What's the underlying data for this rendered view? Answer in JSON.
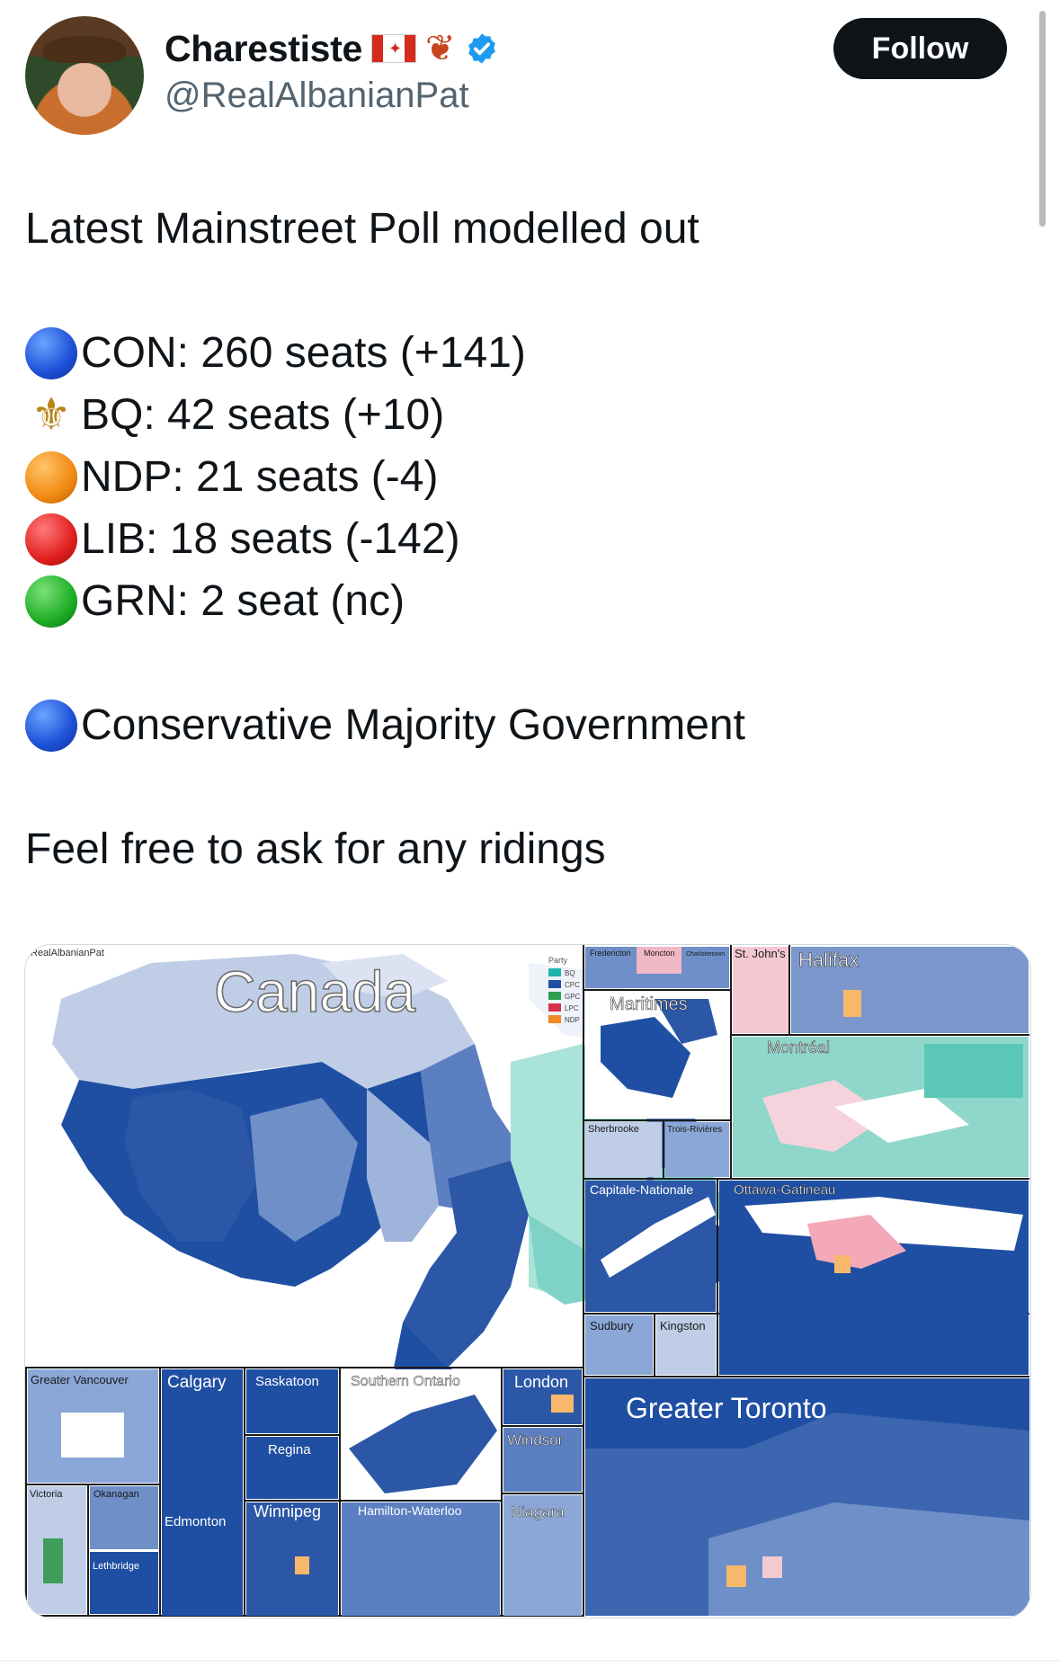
{
  "user": {
    "display_name": "Charestiste",
    "handle": "@RealAlbanianPat",
    "follow_label": "Follow"
  },
  "tweet": {
    "headline": "Latest Mainstreet Poll modelled out",
    "results": [
      {
        "icon": "blue-circle",
        "text": "CON: 260 seats (+141)"
      },
      {
        "icon": "fleur-de-lis",
        "text": "BQ: 42 seats (+10)"
      },
      {
        "icon": "orange-circle",
        "text": "NDP: 21 seats (-4)"
      },
      {
        "icon": "red-circle",
        "text": "LIB: 18 seats (-142)"
      },
      {
        "icon": "green-circle",
        "text": "GRN: 2 seat (nc)"
      }
    ],
    "outcome": "Conservative Majority Government",
    "closing": "Feel free to ask for any ridings"
  },
  "map": {
    "watermark": "RealAlbanianPat",
    "title": "Canada",
    "legend_title": "Party",
    "legend": [
      {
        "label": "BQ",
        "color": "#1fb5a8"
      },
      {
        "label": "CPC",
        "color": "#1f4fa3"
      },
      {
        "label": "GPC",
        "color": "#2e9e4f"
      },
      {
        "label": "LPC",
        "color": "#d6304a"
      },
      {
        "label": "NDP",
        "color": "#f08a24"
      }
    ],
    "insets": {
      "fredericton": "Fredericton",
      "moncton": "Moncton",
      "charlottetown": "Charlottetown",
      "st_johns": "St. John's",
      "halifax": "Halifax",
      "maritimes": "Maritimes",
      "montreal": "Montréal",
      "sherbrooke": "Sherbrooke",
      "trois_rivieres": "Trois-Rivières",
      "capitale_nationale": "Capitale-Nationale",
      "ottawa_gatineau": "Ottawa-Gatineau",
      "sudbury": "Sudbury",
      "kingston": "Kingston",
      "greater_toronto": "Greater Toronto",
      "greater_vancouver": "Greater Vancouver",
      "calgary": "Calgary",
      "saskatoon": "Saskatoon",
      "southern_ontario": "Southern Ontario",
      "london": "London",
      "windsor": "Windsor",
      "regina": "Regina",
      "victoria": "Victoria",
      "okanagan": "Okanagan",
      "edmonton": "Edmonton",
      "winnipeg": "Winnipeg",
      "hamilton_waterloo": "Hamilton-Waterloo",
      "niagara": "Niagara",
      "lethbridge": "Lethbridge"
    }
  }
}
